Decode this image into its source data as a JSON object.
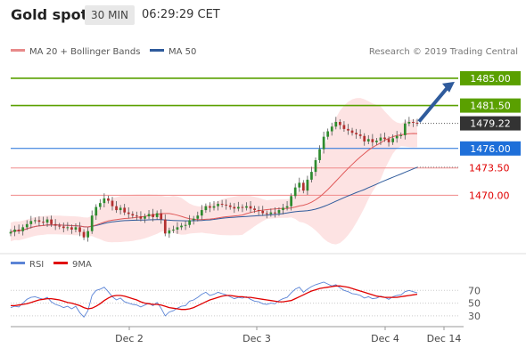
{
  "header": {
    "title": "Gold spot",
    "timeframe": "30 MIN",
    "time": "06:29:29 CET"
  },
  "legend": {
    "ma20": "MA 20 + Bollinger Bands",
    "ma50": "MA 50",
    "credit": "Research © 2019 Trading Central",
    "rsi": "RSI",
    "rsi_ma": "9MA"
  },
  "colors": {
    "ma20": "#e05a5a",
    "ma50": "#2f5b9c",
    "band_fill": "#fde3e3",
    "green": "#5aa000",
    "blue": "#1e6fd9",
    "red_line": "#f08a8a",
    "price_tag": "#333333",
    "rsi": "#5b84d6",
    "rsi_ma": "#e00000"
  },
  "chart_data": [
    {
      "type": "candlestick",
      "ylim": [
        1464.0,
        1487.5
      ],
      "x_labels": [
        "Dec 2",
        "Dec 3",
        "Dec 4",
        "Dec 14"
      ],
      "current_price": 1479.22,
      "levels": [
        {
          "value": 1485.0,
          "label": "1485.00",
          "style": "resistance-target"
        },
        {
          "value": 1481.5,
          "label": "1481.50",
          "style": "resistance"
        },
        {
          "value": 1476.0,
          "label": "1476.00",
          "style": "pivot"
        },
        {
          "value": 1473.5,
          "label": "1473.50",
          "style": "support"
        },
        {
          "value": 1470.0,
          "label": "1470.00",
          "style": "support"
        }
      ],
      "series": [
        {
          "name": "MA 20 + Bollinger Bands"
        },
        {
          "name": "MA 50"
        }
      ],
      "close": [
        1465.3,
        1465.6,
        1465.4,
        1465.9,
        1466.3,
        1466.7,
        1466.8,
        1466.6,
        1466.5,
        1466.9,
        1466.3,
        1466.1,
        1466.0,
        1465.8,
        1465.9,
        1465.6,
        1465.9,
        1465.3,
        1464.6,
        1465.4,
        1467.4,
        1468.5,
        1469.0,
        1469.6,
        1469.3,
        1468.6,
        1468.1,
        1468.4,
        1467.8,
        1467.6,
        1467.4,
        1467.3,
        1467.0,
        1467.3,
        1467.6,
        1467.2,
        1467.7,
        1466.9,
        1465.1,
        1465.5,
        1465.6,
        1465.9,
        1466.1,
        1466.2,
        1466.8,
        1467.0,
        1467.4,
        1468.1,
        1468.6,
        1468.4,
        1468.6,
        1468.9,
        1468.8,
        1468.7,
        1468.5,
        1468.3,
        1468.5,
        1468.4,
        1468.6,
        1468.3,
        1468.1,
        1468.0,
        1467.7,
        1467.6,
        1467.8,
        1467.7,
        1468.1,
        1468.4,
        1468.6,
        1469.9,
        1471.0,
        1471.6,
        1470.6,
        1472.0,
        1473.0,
        1474.5,
        1475.9,
        1477.5,
        1478.2,
        1478.8,
        1479.4,
        1479.0,
        1478.5,
        1478.3,
        1478.0,
        1477.8,
        1477.6,
        1476.9,
        1477.2,
        1476.8,
        1477.0,
        1477.4,
        1477.2,
        1476.8,
        1477.3,
        1477.6,
        1477.7,
        1479.2,
        1479.4,
        1479.3,
        1479.2
      ]
    },
    {
      "type": "line",
      "ylim": [
        20,
        90
      ],
      "y_ticks": [
        30,
        50,
        70
      ],
      "series": [
        {
          "name": "RSI",
          "values": [
            43,
            45,
            44,
            50,
            56,
            59,
            60,
            58,
            56,
            59,
            52,
            48,
            46,
            43,
            45,
            41,
            45,
            35,
            28,
            38,
            62,
            70,
            72,
            75,
            68,
            60,
            55,
            58,
            52,
            50,
            48,
            47,
            44,
            47,
            50,
            46,
            51,
            42,
            30,
            36,
            38,
            42,
            45,
            46,
            53,
            55,
            59,
            64,
            67,
            62,
            64,
            67,
            65,
            63,
            60,
            57,
            59,
            58,
            60,
            56,
            53,
            52,
            49,
            48,
            50,
            49,
            54,
            57,
            59,
            66,
            72,
            75,
            67,
            72,
            76,
            79,
            81,
            83,
            80,
            77,
            79,
            74,
            70,
            68,
            65,
            64,
            62,
            58,
            60,
            57,
            58,
            61,
            59,
            56,
            60,
            62,
            63,
            68,
            70,
            68,
            66
          ]
        },
        {
          "name": "9MA",
          "values": [
            46,
            46,
            47,
            48,
            49,
            51,
            53,
            55,
            56,
            57,
            57,
            56,
            55,
            53,
            51,
            50,
            48,
            46,
            43,
            41,
            42,
            45,
            49,
            54,
            58,
            61,
            62,
            62,
            61,
            59,
            57,
            55,
            52,
            50,
            49,
            48,
            48,
            47,
            45,
            43,
            42,
            41,
            40,
            40,
            41,
            43,
            46,
            49,
            52,
            55,
            57,
            59,
            61,
            62,
            62,
            61,
            60,
            60,
            59,
            59,
            58,
            57,
            56,
            55,
            54,
            53,
            52,
            52,
            53,
            54,
            57,
            60,
            63,
            66,
            69,
            71,
            73,
            74,
            75,
            76,
            77,
            77,
            76,
            75,
            73,
            71,
            69,
            67,
            65,
            63,
            61,
            60,
            59,
            59,
            59,
            59,
            60,
            61,
            62,
            63,
            64
          ]
        }
      ]
    }
  ]
}
